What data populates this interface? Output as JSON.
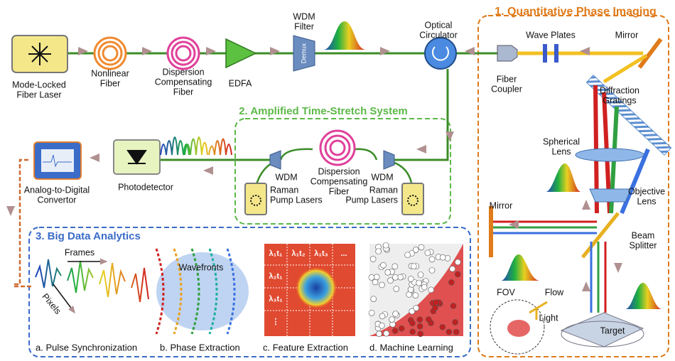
{
  "sections": {
    "imaging": "1. Quantitative Phase Imaging",
    "time_stretch": "2. Amplified Time-Stretch System",
    "analytics": "3. Big Data Analytics"
  },
  "components": {
    "laser": [
      "Mode-Locked",
      "Fiber Laser"
    ],
    "nonlinear_fiber": [
      "Nonlinear",
      "Fiber"
    ],
    "dcf": [
      "Dispersion",
      "Compensating",
      "Fiber"
    ],
    "edfa": [
      "EDFA"
    ],
    "wdm_filter": [
      "WDM",
      "Filter"
    ],
    "demux": "Demux",
    "circulator": [
      "Optical",
      "Circulator"
    ],
    "coupler": [
      "Fiber",
      "Coupler"
    ],
    "wave_plates": [
      "Wave Plates"
    ],
    "mirror_top": [
      "Mirror"
    ],
    "gratings": [
      "Diffraction",
      "Gratings"
    ],
    "spherical_lens": [
      "Spherical",
      "Lens"
    ],
    "objective": [
      "Objective",
      "Lens"
    ],
    "mirror_left": [
      "Mirror"
    ],
    "beam_splitter": [
      "Beam",
      "Splitter"
    ],
    "fov": "FOV",
    "flow": "Flow",
    "light": "Light",
    "target": "Target",
    "adc": [
      "Analog-to-Digital",
      "Convertor"
    ],
    "photodetector": [
      "Photodetector"
    ],
    "wdm_left": [
      "WDM"
    ],
    "wdm_right": [
      "WDM"
    ],
    "dcf2": [
      "Dispersion",
      "Compensating",
      "Fiber"
    ],
    "raman_left": [
      "Raman",
      "Pump Lasers"
    ],
    "raman_right": [
      "Raman",
      "Pump Lasers"
    ]
  },
  "analytics": {
    "frames": "Frames",
    "pixels": "Pixels",
    "wavefronts": "Wavefronts",
    "steps": [
      "a. Pulse Synchronization",
      "b. Phase Extraction",
      "c. Feature Extraction",
      "d. Machine Learning"
    ],
    "grid": [
      "λ₁t₁",
      "λ₁t₂",
      "λ₁t₃",
      "...",
      "λ₂t₁",
      "λ₃t₁",
      "⋮"
    ]
  }
}
